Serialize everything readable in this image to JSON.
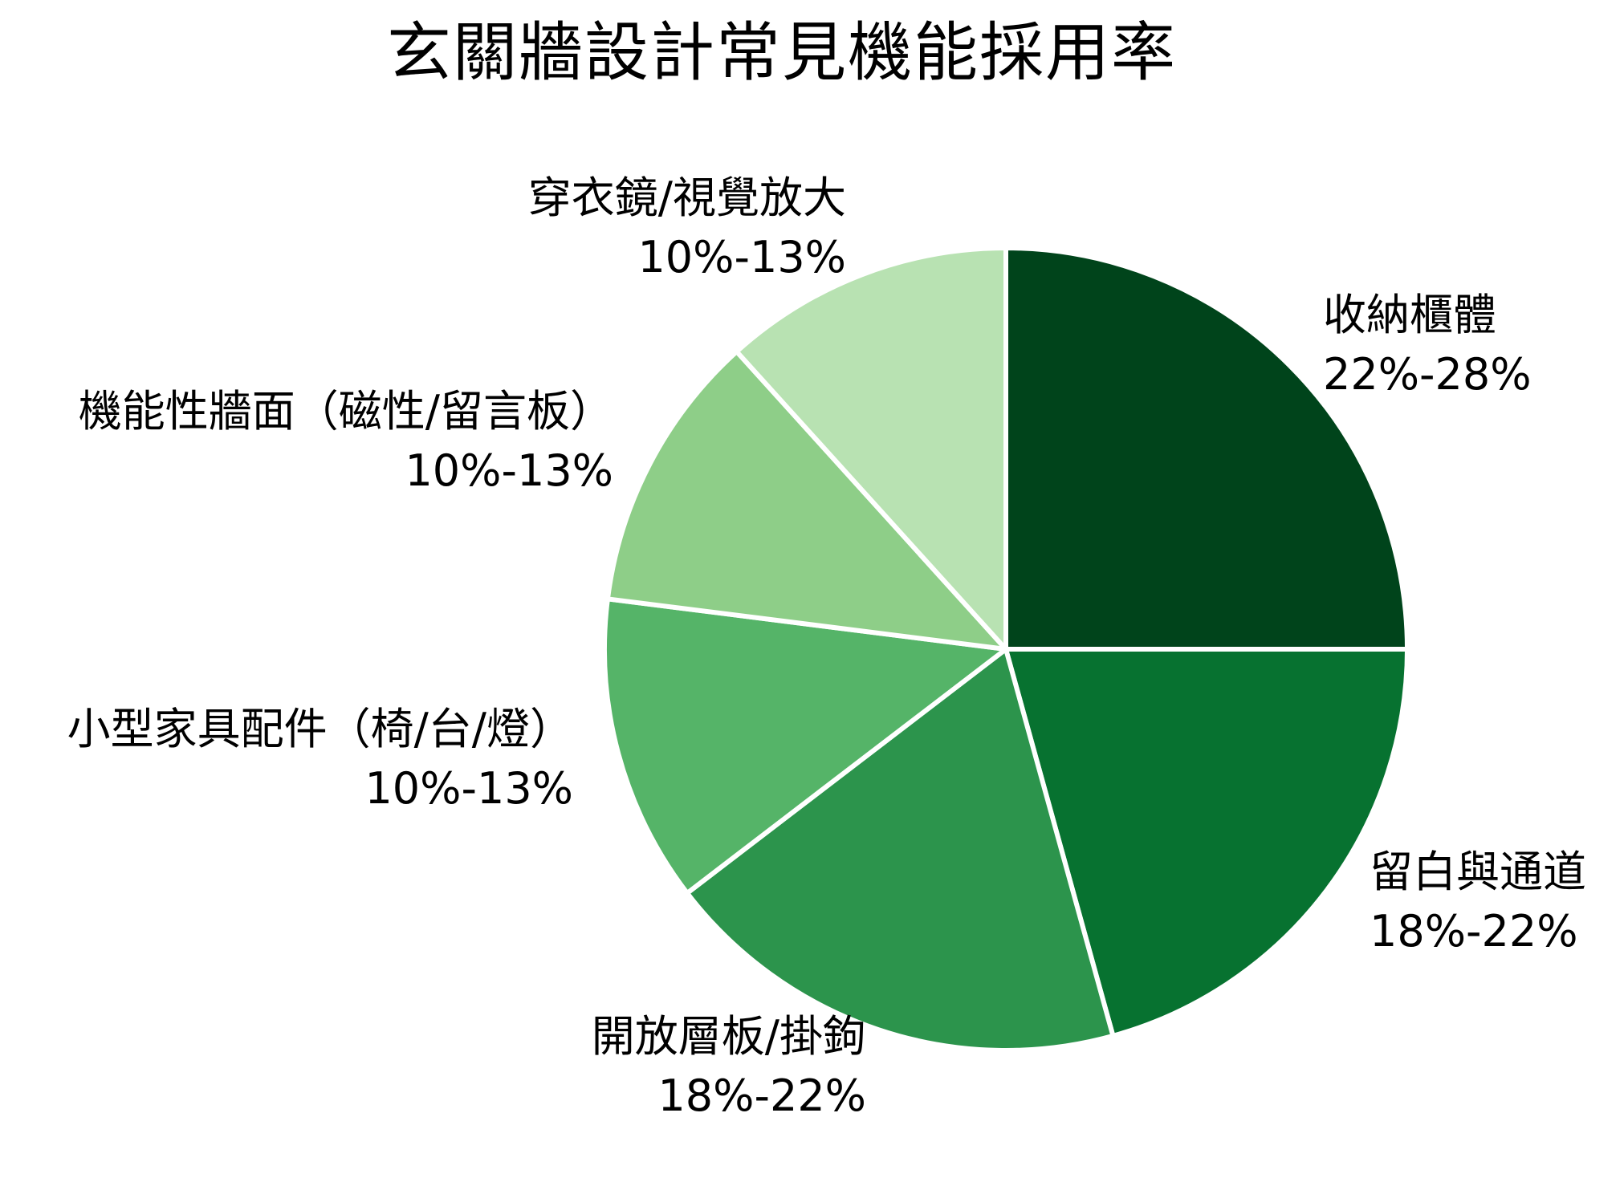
{
  "chart_data": {
    "type": "pie",
    "title": "玄關牆設計常見機能採用率",
    "start_angle": "12 o'clock, clockwise",
    "slice_edge_color": "#ffffff",
    "legend": "none (labels placed next to slices)",
    "slices": [
      {
        "label": "收納櫃體",
        "range_label": "22%-28%",
        "value": 25.0,
        "color": "#00441b"
      },
      {
        "label": "留白與通道",
        "range_label": "18%-22%",
        "value": 20.7,
        "color": "#077230"
      },
      {
        "label": "開放層板/掛鉤",
        "range_label": "18%-22%",
        "value": 18.9,
        "color": "#2c944c"
      },
      {
        "label": "小型家具配件（椅/台/燈）",
        "range_label": "10%-13%",
        "value": 12.4,
        "color": "#55b468"
      },
      {
        "label": "機能性牆面（磁性/留言板）",
        "range_label": "10%-13%",
        "value": 11.3,
        "color": "#8ece88"
      },
      {
        "label": "穿衣鏡/視覺放大",
        "range_label": "10%-13%",
        "value": 11.7,
        "color": "#b8e2b2"
      }
    ]
  }
}
